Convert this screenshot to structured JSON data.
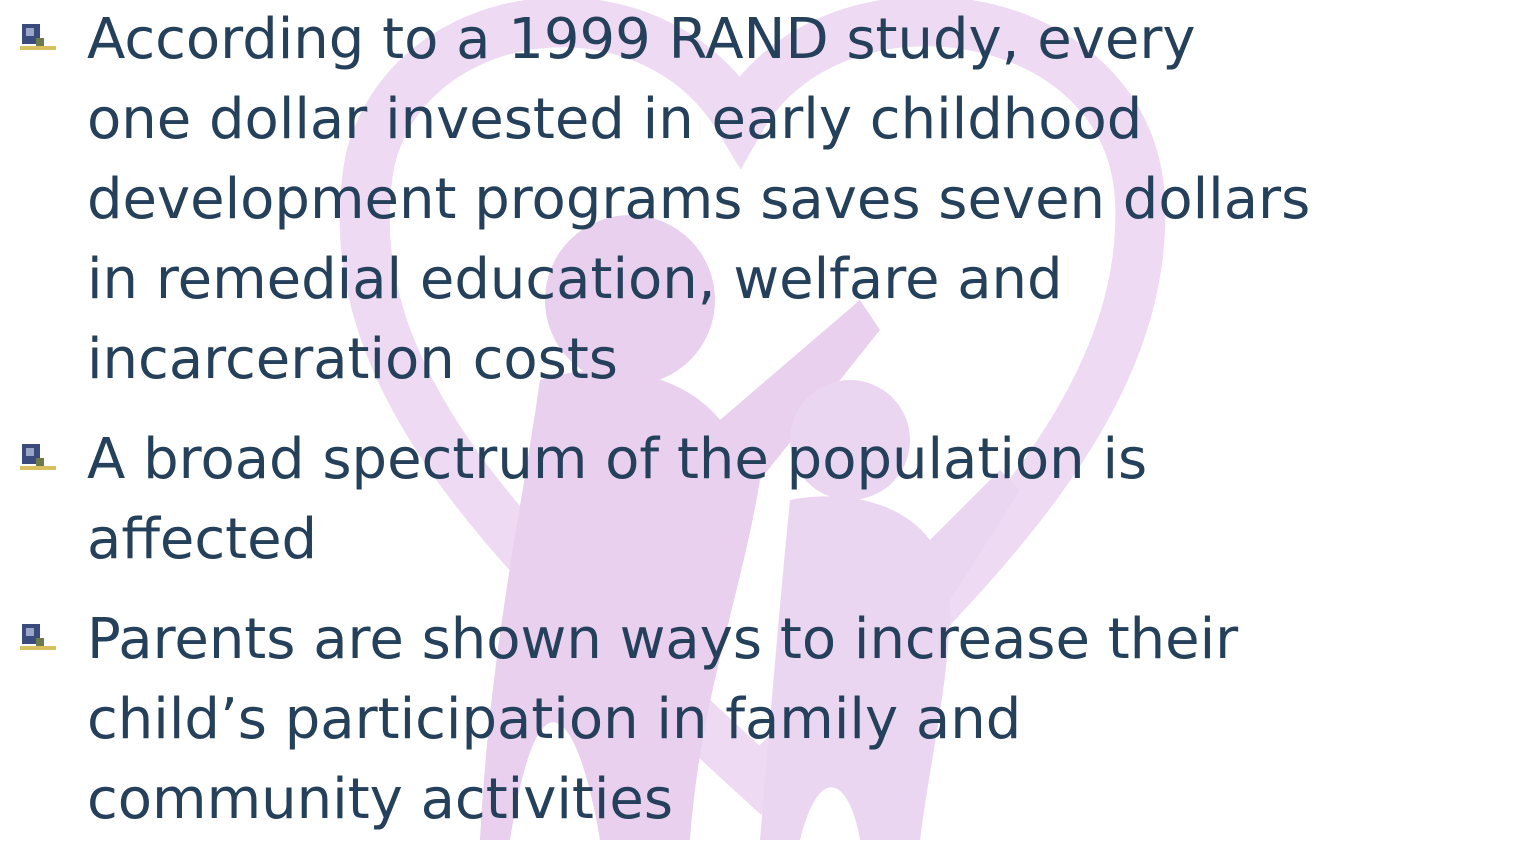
{
  "bullets": [
    {
      "lines": [
        "According to a 1999 RAND study, every",
        "one dollar invested in early childhood",
        "development programs saves seven dollars",
        "in remedial education, welfare and",
        "incarceration costs"
      ]
    },
    {
      "lines": [
        "A broad spectrum of the population is",
        "affected"
      ]
    },
    {
      "lines": [
        "Parents are shown ways to increase their",
        "child’s participation in family and",
        "community activities"
      ]
    }
  ]
}
